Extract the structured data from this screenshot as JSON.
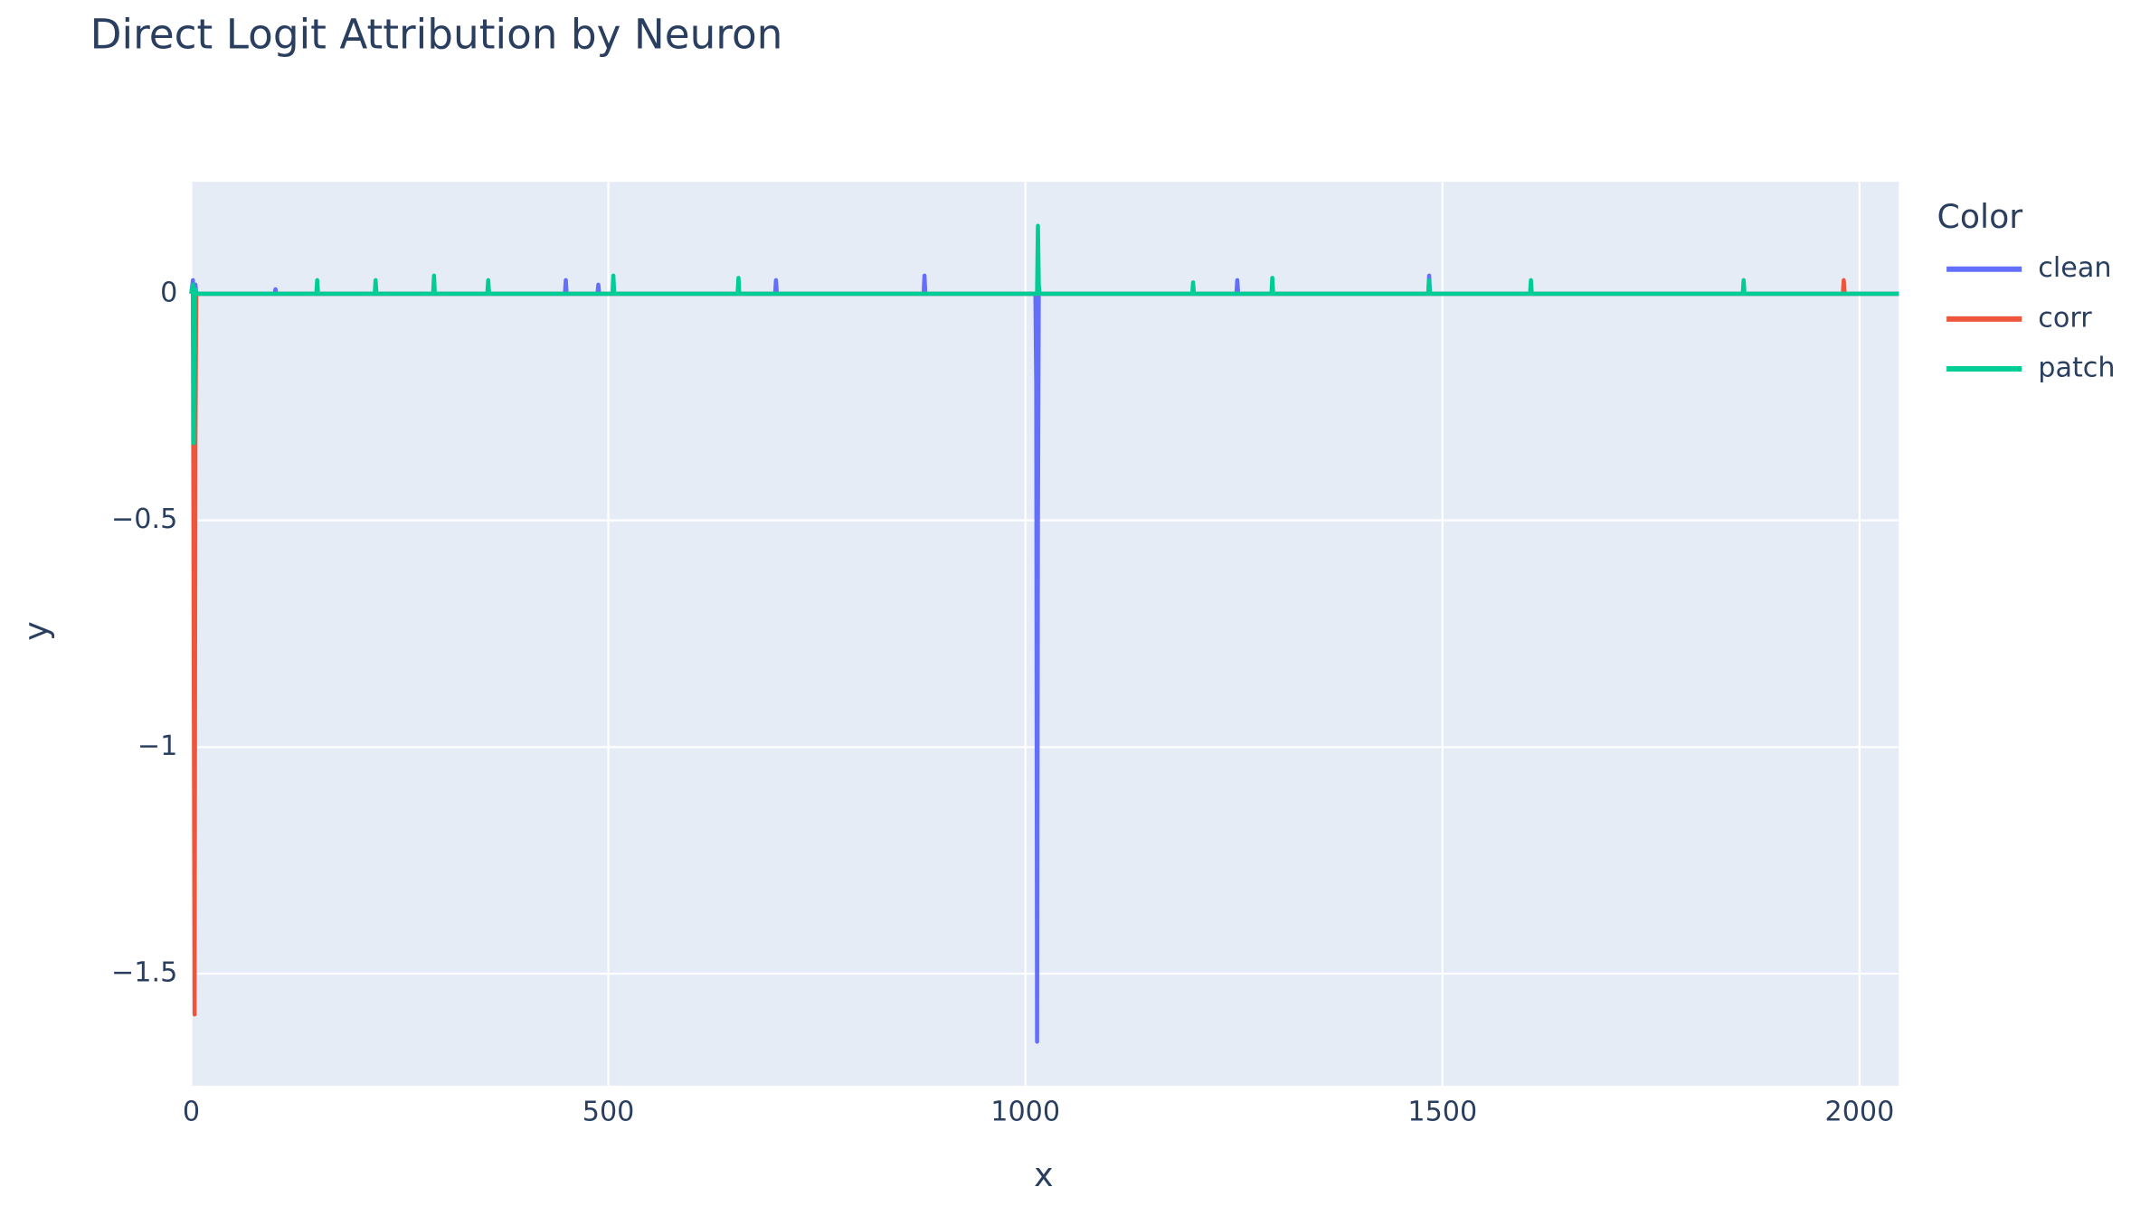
{
  "chart_data": {
    "type": "line",
    "title": "Direct Logit Attribution by Neuron",
    "x_label": "x",
    "y_label": "y",
    "legend_title": "Color",
    "grid": true,
    "x": [
      0,
      2,
      3,
      4,
      5,
      6,
      100,
      101,
      102,
      150,
      151,
      152,
      220,
      221,
      222,
      290,
      291,
      292,
      355,
      356,
      357,
      448,
      449,
      450,
      487,
      488,
      489,
      505,
      506,
      507,
      655,
      656,
      657,
      700,
      701,
      702,
      878,
      879,
      880,
      1011,
      1012,
      1013,
      1014,
      1015,
      1016,
      1017,
      1200,
      1201,
      1202,
      1253,
      1254,
      1255,
      1295,
      1296,
      1297,
      1483,
      1484,
      1485,
      1605,
      1606,
      1607,
      1860,
      1861,
      1862,
      1980,
      1981,
      1982,
      2047
    ],
    "series": [
      {
        "name": "clean",
        "color": "#636efa",
        "values": [
          0,
          0.03,
          -0.1,
          0,
          0.02,
          0,
          0,
          0.01,
          0,
          0,
          0,
          0,
          0,
          0,
          0,
          0,
          0,
          0,
          0,
          0,
          0,
          0,
          0.03,
          0,
          0,
          0.02,
          0,
          0,
          0,
          0,
          0,
          0,
          0,
          0,
          0.03,
          0,
          0,
          0.04,
          0,
          0,
          0,
          -0.2,
          -1.65,
          -0.5,
          0,
          0,
          0,
          0,
          0,
          0,
          0.03,
          0,
          0,
          0,
          0,
          0,
          0.04,
          0,
          0,
          0,
          0,
          0,
          0,
          0,
          0,
          0,
          0,
          0
        ]
      },
      {
        "name": "corr",
        "color": "#ef553b",
        "values": [
          0,
          0,
          -0.8,
          -1.59,
          -0.33,
          0,
          0,
          0,
          0,
          0,
          0,
          0,
          0,
          0,
          0,
          0,
          0,
          0,
          0,
          0,
          0,
          0,
          0,
          0,
          0,
          0,
          0,
          0,
          0,
          0,
          0,
          0,
          0,
          0,
          0,
          0,
          0,
          0,
          0,
          0,
          0,
          0,
          0,
          0,
          0,
          0,
          0,
          0,
          0,
          0,
          0,
          0,
          0,
          0,
          0,
          0,
          0,
          0,
          0,
          0,
          0,
          0,
          0,
          0,
          0,
          0.03,
          0,
          0
        ]
      },
      {
        "name": "patch",
        "color": "#00cc96",
        "values": [
          0,
          0.02,
          -0.33,
          0,
          0.01,
          0,
          0,
          0,
          0,
          0,
          0.03,
          0,
          0,
          0.03,
          0,
          0,
          0.04,
          0,
          0,
          0.03,
          0,
          0,
          0,
          0,
          0,
          0,
          0,
          0,
          0.04,
          0,
          0,
          0.035,
          0,
          0,
          0,
          0,
          0,
          0,
          0,
          0,
          0,
          0,
          0,
          0.15,
          0.02,
          0,
          0,
          0.025,
          0,
          0,
          0,
          0,
          0,
          0.035,
          0,
          0,
          0.03,
          0,
          0,
          0.03,
          0,
          0,
          0.03,
          0,
          0,
          0,
          0,
          0
        ]
      }
    ],
    "xlim": [
      0,
      2047
    ],
    "ylim": [
      -1.747,
      0.247
    ],
    "xticks": [
      0,
      500,
      1000,
      1500,
      2000
    ],
    "yticks": [
      0,
      {
        "value": -0.5,
        "label": "−0.5"
      },
      {
        "value": -1,
        "label": "−1"
      },
      {
        "value": -1.5,
        "label": "−1.5"
      }
    ]
  }
}
